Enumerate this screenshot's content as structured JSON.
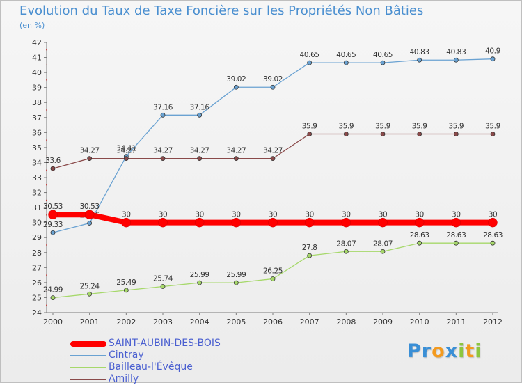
{
  "title": "Evolution du Taux de Taxe Foncière sur les Propriétés Non Bâties",
  "unit": "(en %)",
  "chart_data": {
    "type": "line",
    "title": "Evolution du Taux de Taxe Foncière sur les Propriétés Non Bâties",
    "ylabel": "(en %)",
    "xlabel": "",
    "x": [
      2000,
      2001,
      2002,
      2003,
      2004,
      2005,
      2006,
      2007,
      2008,
      2009,
      2010,
      2011,
      2012
    ],
    "xlim": [
      2000,
      2012
    ],
    "ylim": [
      24,
      42
    ],
    "yticks": [
      24,
      25,
      26,
      27,
      28,
      29,
      30,
      31,
      32,
      33,
      34,
      35,
      36,
      37,
      38,
      39,
      40,
      41,
      42
    ],
    "series": [
      {
        "name": "SAINT-AUBIN-DES-BOIS",
        "color": "#ff0000",
        "labels": [
          "30.53",
          "30.53",
          "30",
          "30",
          "30",
          "30",
          "30",
          "30",
          "30",
          "30",
          "30",
          "30",
          "30"
        ],
        "values": [
          30.53,
          30.53,
          30,
          30,
          30,
          30,
          30,
          30,
          30,
          30,
          30,
          30,
          30
        ]
      },
      {
        "name": "Cintray",
        "color": "#6aa2d2",
        "labels": [
          "29.33",
          "29.96",
          "34.41",
          "37.16",
          "37.16",
          "39.02",
          "39.02",
          "40.65",
          "40.65",
          "40.65",
          "40.83",
          "40.83",
          "40.9"
        ],
        "values": [
          29.33,
          29.96,
          34.41,
          37.16,
          37.16,
          39.02,
          39.02,
          40.65,
          40.65,
          40.65,
          40.83,
          40.83,
          40.9
        ]
      },
      {
        "name": "Bailleau-l'Évêque",
        "color": "#a6d86a",
        "labels": [
          "24.99",
          "25.24",
          "25.49",
          "25.74",
          "25.99",
          "25.99",
          "26.25",
          "27.8",
          "28.07",
          "28.07",
          "28.63",
          "28.63",
          "28.63"
        ],
        "values": [
          24.99,
          25.24,
          25.49,
          25.74,
          25.99,
          25.99,
          26.25,
          27.8,
          28.07,
          28.07,
          28.63,
          28.63,
          28.63
        ]
      },
      {
        "name": "Amilly",
        "color": "#8a4a4a",
        "labels": [
          "33.6",
          "34.27",
          "34.27",
          "34.27",
          "34.27",
          "34.27",
          "34.27",
          "35.9",
          "35.9",
          "35.9",
          "35.9",
          "35.9",
          "35.9"
        ],
        "values": [
          33.6,
          34.27,
          34.27,
          34.27,
          34.27,
          34.27,
          34.27,
          35.9,
          35.9,
          35.9,
          35.9,
          35.9,
          35.9
        ]
      }
    ]
  },
  "legend": {
    "items": [
      {
        "label": "SAINT-AUBIN-DES-BOIS",
        "color": "#ff0000"
      },
      {
        "label": "Cintray",
        "color": "#6aa2d2"
      },
      {
        "label": "Bailleau-l'Évêque",
        "color": "#a6d86a"
      },
      {
        "label": "Amilly",
        "color": "#8a4a4a"
      }
    ]
  },
  "logo": {
    "parts": [
      {
        "text": "P",
        "color": "#3a8fd6"
      },
      {
        "text": "r",
        "color": "#3a8fd6"
      },
      {
        "text": "o",
        "color": "#f39a1e"
      },
      {
        "text": "x",
        "color": "#3a8fd6"
      },
      {
        "text": "i",
        "color": "#8cc63f"
      },
      {
        "text": "t",
        "color": "#f39a1e"
      },
      {
        "text": "i",
        "color": "#8cc63f"
      }
    ]
  }
}
